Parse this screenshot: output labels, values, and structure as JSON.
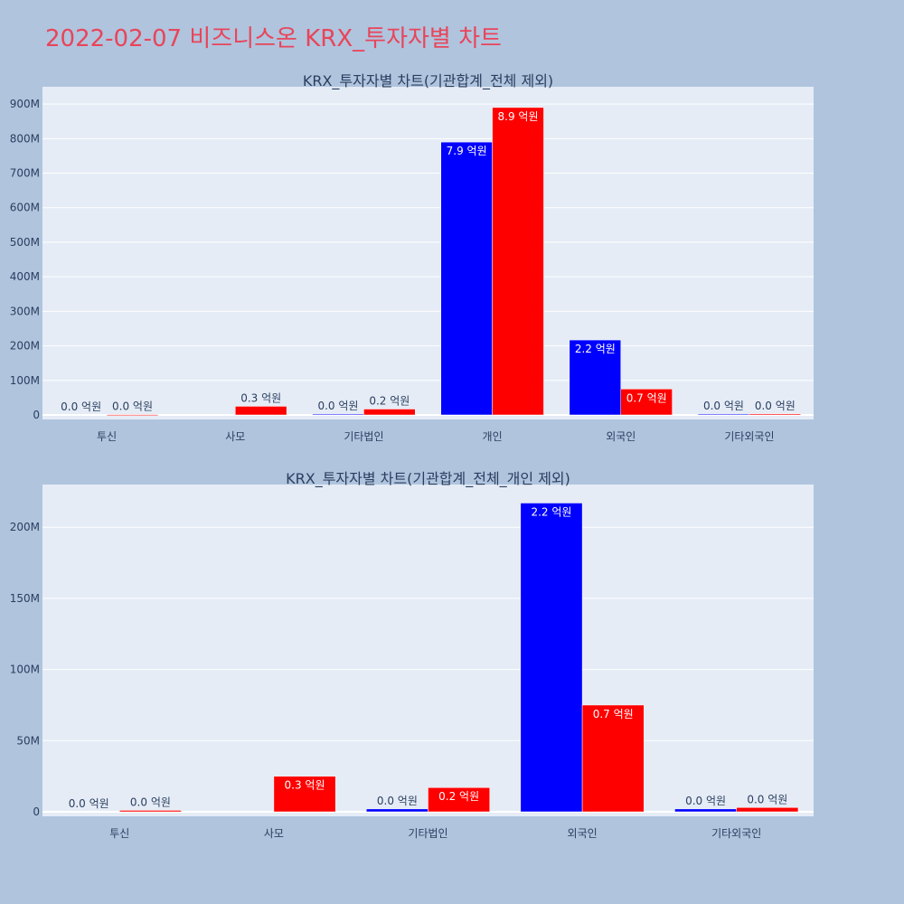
{
  "page": {
    "title": "2022-02-07 비즈니스온 KRX_투자자별 차트"
  },
  "colors": {
    "background": "#b0c4de",
    "plot_bg": "#e5ecf6",
    "buy": "#0000ff",
    "sell": "#ff0000",
    "title": "#e8455a",
    "text": "#2a3f5f"
  },
  "chart_data": [
    {
      "type": "bar",
      "title": "KRX_투자자별 차트(기관합계_전체 제외)",
      "categories": [
        "투신",
        "사모",
        "기타법인",
        "개인",
        "외국인",
        "기타외국인"
      ],
      "series": [
        {
          "color": "#0000ff",
          "values": [
            0,
            0,
            2000000,
            790000000,
            217000000,
            2000000
          ],
          "labels": [
            "0.0 억원",
            "",
            "0.0 억원",
            "7.9 억원",
            "2.2 억원",
            "0.0 억원"
          ]
        },
        {
          "color": "#ff0000",
          "values": [
            1000000,
            25000000,
            17000000,
            890000000,
            75000000,
            3000000
          ],
          "labels": [
            "0.0 억원",
            "0.3 억원",
            "0.2 억원",
            "8.9 억원",
            "0.7 억원",
            "0.0 억원"
          ]
        }
      ],
      "ylim": [
        0,
        950000000
      ],
      "yticks": [
        {
          "value": 0,
          "label": "0"
        },
        {
          "value": 100000000,
          "label": "100M"
        },
        {
          "value": 200000000,
          "label": "200M"
        },
        {
          "value": 300000000,
          "label": "300M"
        },
        {
          "value": 400000000,
          "label": "400M"
        },
        {
          "value": 500000000,
          "label": "500M"
        },
        {
          "value": 600000000,
          "label": "600M"
        },
        {
          "value": 700000000,
          "label": "700M"
        },
        {
          "value": 800000000,
          "label": "800M"
        },
        {
          "value": 900000000,
          "label": "900M"
        }
      ],
      "grid": true,
      "legend": "none"
    },
    {
      "type": "bar",
      "title": "KRX_투자자별 차트(기관합계_전체_개인 제외)",
      "categories": [
        "투신",
        "사모",
        "기타법인",
        "외국인",
        "기타외국인"
      ],
      "series": [
        {
          "color": "#0000ff",
          "values": [
            0,
            0,
            2000000,
            217000000,
            2000000
          ],
          "labels": [
            "0.0 억원",
            "",
            "0.0 억원",
            "2.2 억원",
            "0.0 억원"
          ]
        },
        {
          "color": "#ff0000",
          "values": [
            1000000,
            25000000,
            17000000,
            75000000,
            3000000
          ],
          "labels": [
            "0.0 억원",
            "0.3 억원",
            "0.2 억원",
            "0.7 억원",
            "0.0 억원"
          ]
        }
      ],
      "ylim": [
        0,
        230000000
      ],
      "yticks": [
        {
          "value": 0,
          "label": "0"
        },
        {
          "value": 50000000,
          "label": "50M"
        },
        {
          "value": 100000000,
          "label": "100M"
        },
        {
          "value": 150000000,
          "label": "150M"
        },
        {
          "value": 200000000,
          "label": "200M"
        }
      ],
      "grid": true,
      "legend": "none"
    }
  ]
}
